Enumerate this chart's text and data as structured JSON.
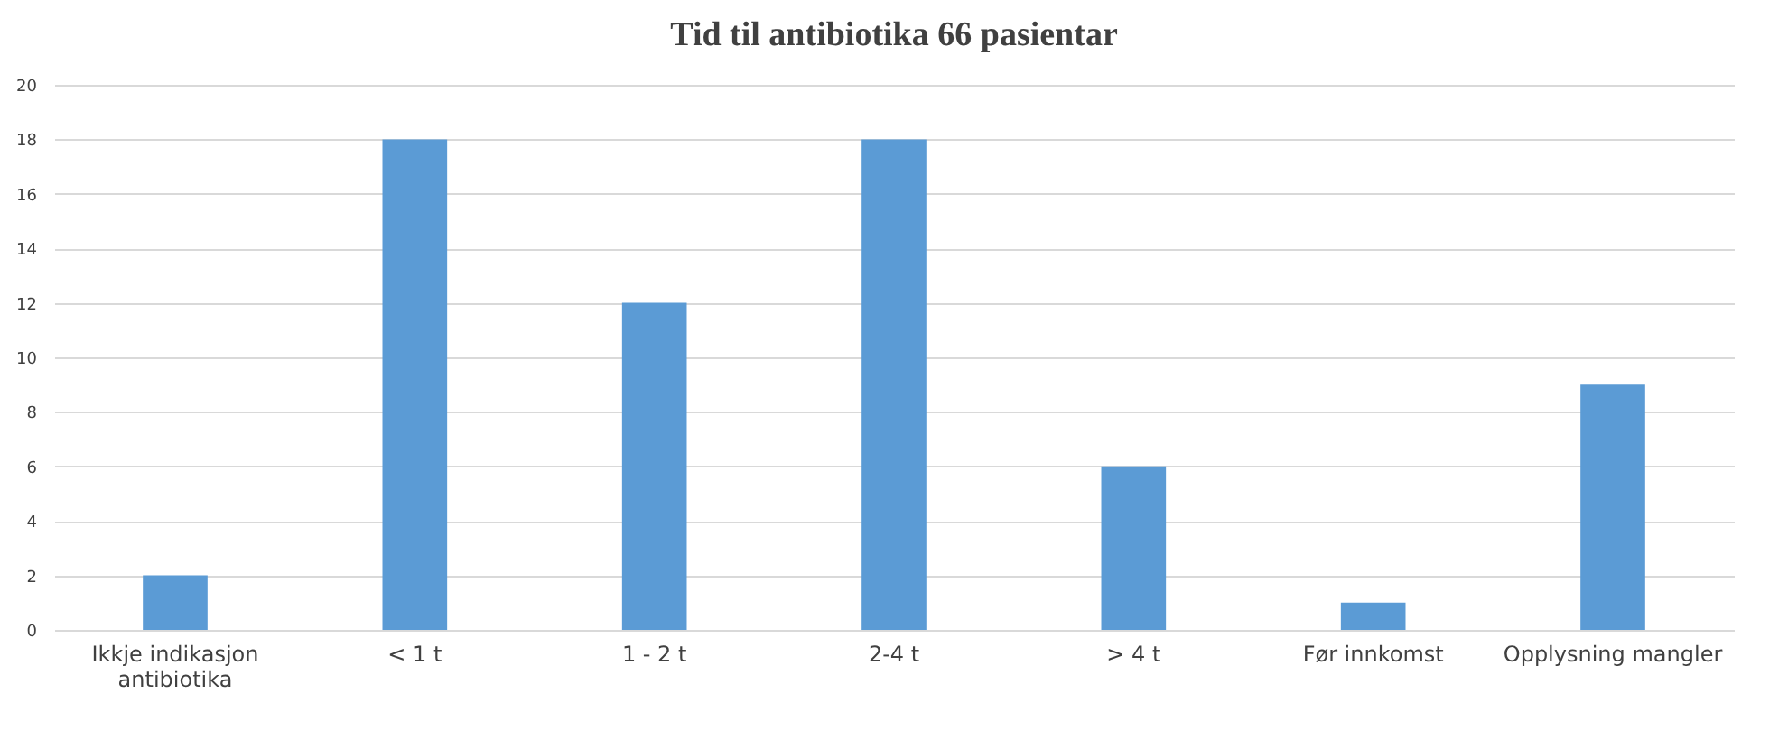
{
  "chart_data": {
    "type": "bar",
    "title": "Tid til antibiotika 66 pasientar",
    "categories": [
      "Ikkje indikasjon antibiotika",
      "< 1 t",
      "1 - 2 t",
      "2-4 t",
      "> 4 t",
      "Før innkomst",
      "Opplysning mangler"
    ],
    "values": [
      2,
      18,
      12,
      18,
      6,
      1,
      9
    ],
    "color": "#5b9bd5",
    "ylim": [
      0,
      20
    ],
    "yticks": [
      0,
      2,
      4,
      6,
      8,
      10,
      12,
      14,
      16,
      18,
      20
    ],
    "grid": "y"
  }
}
